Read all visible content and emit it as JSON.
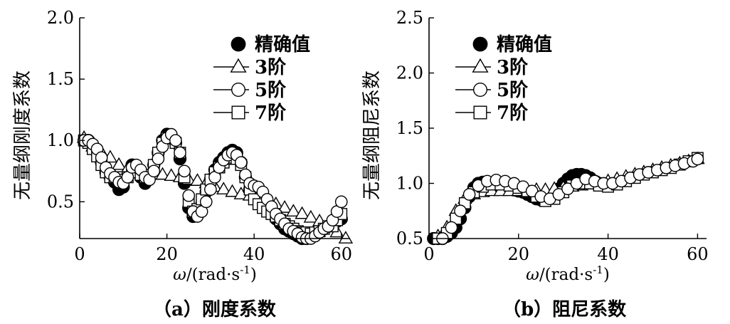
{
  "chart_data": [
    {
      "type": "scatter",
      "panel": "a",
      "caption": "（a）刚度系数",
      "xlabel_prefix": "ω/(rad·s",
      "xlabel_sup": "-1",
      "xlabel_suffix": ")",
      "ylabel": "无量纲刚度系数",
      "xlim": [
        0,
        62
      ],
      "ylim": [
        0.2,
        2.0
      ],
      "xticks": [
        0,
        20,
        40,
        60
      ],
      "yticks": [
        0.5,
        1.0,
        1.5,
        2.0
      ],
      "legend_position": "top-right",
      "series": [
        {
          "name": "精确值",
          "marker": "filled-circle",
          "x": [
            1,
            2,
            3,
            4,
            5,
            6,
            7,
            8,
            9,
            10,
            11,
            12,
            13,
            14,
            15,
            16,
            17,
            18,
            19,
            20,
            21,
            22,
            23,
            24,
            25,
            26,
            27,
            28,
            29,
            30,
            31,
            32,
            33,
            34,
            35,
            36,
            37,
            38,
            39,
            40,
            41,
            42,
            43,
            44,
            45,
            46,
            47,
            48,
            49,
            50,
            51,
            52,
            53,
            54,
            55,
            56,
            57,
            58,
            59,
            60
          ],
          "y": [
            1.0,
            1.0,
            0.95,
            0.9,
            0.82,
            0.74,
            0.7,
            0.66,
            0.6,
            0.62,
            0.72,
            0.8,
            0.78,
            0.7,
            0.65,
            0.7,
            0.8,
            0.9,
            1.0,
            1.05,
            1.02,
            0.98,
            0.85,
            0.65,
            0.45,
            0.38,
            0.4,
            0.48,
            0.58,
            0.68,
            0.76,
            0.82,
            0.86,
            0.9,
            0.92,
            0.9,
            0.82,
            0.7,
            0.6,
            0.55,
            0.52,
            0.5,
            0.45,
            0.4,
            0.36,
            0.32,
            0.28,
            0.26,
            0.24,
            0.22,
            0.2,
            0.2,
            0.22,
            0.24,
            0.26,
            0.28,
            0.3,
            0.32,
            0.34,
            0.36
          ]
        },
        {
          "name": "3阶",
          "marker": "open-triangle",
          "x": [
            1,
            3,
            5,
            7,
            9,
            11,
            13,
            15,
            17,
            19,
            21,
            23,
            25,
            27,
            29,
            31,
            33,
            35,
            37,
            39,
            41,
            43,
            45,
            47,
            49,
            51,
            53,
            55,
            57,
            59,
            61
          ],
          "y": [
            1.02,
            0.95,
            0.9,
            0.86,
            0.8,
            0.77,
            0.74,
            0.72,
            0.72,
            0.72,
            0.71,
            0.7,
            0.68,
            0.67,
            0.65,
            0.62,
            0.6,
            0.58,
            0.56,
            0.55,
            0.53,
            0.5,
            0.48,
            0.45,
            0.42,
            0.4,
            0.37,
            0.34,
            0.3,
            0.25,
            0.2
          ]
        },
        {
          "name": "5阶",
          "marker": "open-circle",
          "x": [
            1,
            2,
            3,
            4,
            5,
            6,
            7,
            8,
            9,
            10,
            11,
            12,
            13,
            14,
            15,
            16,
            17,
            18,
            19,
            20,
            21,
            22,
            23,
            24,
            25,
            26,
            27,
            28,
            29,
            30,
            31,
            32,
            33,
            34,
            35,
            36,
            37,
            38,
            39,
            40,
            41,
            42,
            43,
            44,
            45,
            46,
            47,
            48,
            49,
            50,
            51,
            52,
            53,
            54,
            55,
            56,
            57,
            58,
            59,
            60
          ],
          "y": [
            1.0,
            1.0,
            0.97,
            0.93,
            0.86,
            0.78,
            0.73,
            0.7,
            0.66,
            0.65,
            0.7,
            0.78,
            0.8,
            0.76,
            0.7,
            0.68,
            0.75,
            0.85,
            0.95,
            1.02,
            1.05,
            1.0,
            0.9,
            0.75,
            0.55,
            0.42,
            0.38,
            0.42,
            0.5,
            0.6,
            0.7,
            0.78,
            0.84,
            0.88,
            0.9,
            0.88,
            0.82,
            0.72,
            0.65,
            0.63,
            0.62,
            0.58,
            0.52,
            0.46,
            0.4,
            0.36,
            0.32,
            0.28,
            0.26,
            0.24,
            0.21,
            0.2,
            0.2,
            0.22,
            0.25,
            0.28,
            0.3,
            0.35,
            0.42,
            0.5
          ]
        },
        {
          "name": "7阶",
          "marker": "open-square",
          "x": [
            1,
            2,
            3,
            4,
            5,
            6,
            7,
            8,
            9,
            10,
            11,
            12,
            13,
            14,
            15,
            16,
            17,
            18,
            19,
            20,
            21,
            22,
            23,
            24,
            25,
            26,
            27,
            28,
            29,
            30,
            31,
            32,
            33,
            34,
            35,
            36,
            37,
            38,
            39,
            40,
            41,
            42,
            43,
            44,
            45,
            46,
            47,
            48,
            49,
            50,
            51,
            52,
            53,
            54,
            55,
            56,
            57,
            58,
            59,
            60
          ],
          "y": [
            1.0,
            0.98,
            0.93,
            0.87,
            0.8,
            0.74,
            0.7,
            0.7,
            0.7,
            0.68,
            0.7,
            0.74,
            0.74,
            0.72,
            0.7,
            0.72,
            0.8,
            0.9,
            0.98,
            1.02,
            1.02,
            0.98,
            0.9,
            0.7,
            0.5,
            0.42,
            0.44,
            0.52,
            0.6,
            0.68,
            0.74,
            0.78,
            0.82,
            0.85,
            0.86,
            0.85,
            0.8,
            0.7,
            0.6,
            0.52,
            0.48,
            0.45,
            0.42,
            0.4,
            0.38,
            0.35,
            0.32,
            0.3,
            0.28,
            0.26,
            0.25,
            0.25,
            0.24,
            0.25,
            0.26,
            0.28,
            0.3,
            0.3,
            0.35,
            0.4
          ]
        }
      ]
    },
    {
      "type": "scatter",
      "panel": "b",
      "caption": "（b）阻尼系数",
      "xlabel_prefix": "ω/(rad·s",
      "xlabel_sup": "-1",
      "xlabel_suffix": ")",
      "ylabel": "无量纲阻尼系数",
      "xlim": [
        0,
        62
      ],
      "ylim": [
        0.5,
        2.5
      ],
      "xticks": [
        0,
        20,
        40,
        60
      ],
      "yticks": [
        0.5,
        1.0,
        1.5,
        2.0,
        2.5
      ],
      "legend_position": "top-left",
      "series": [
        {
          "name": "精确值",
          "marker": "filled-circle",
          "x": [
            1,
            2,
            3,
            4,
            5,
            6,
            7,
            8,
            9,
            10,
            11,
            12,
            13,
            14,
            15,
            16,
            17,
            18,
            19,
            20,
            21,
            22,
            23,
            24,
            25,
            26,
            27,
            28,
            29,
            30,
            31,
            32,
            33,
            34,
            35,
            36,
            37,
            38
          ],
          "y": [
            0.5,
            0.5,
            0.5,
            0.52,
            0.55,
            0.6,
            0.68,
            0.78,
            0.88,
            0.96,
            1.0,
            1.01,
            1.0,
            0.99,
            0.98,
            0.97,
            0.96,
            0.95,
            0.94,
            0.93,
            0.92,
            0.9,
            0.88,
            0.86,
            0.85,
            0.85,
            0.87,
            0.9,
            0.95,
            1.0,
            1.04,
            1.07,
            1.08,
            1.08,
            1.07,
            1.05,
            1.02,
            1.0
          ]
        },
        {
          "name": "3阶",
          "marker": "open-triangle",
          "x": [
            2,
            4,
            6,
            8,
            10,
            12,
            14,
            16,
            18,
            20,
            22,
            24,
            26,
            28,
            30,
            32,
            34,
            36,
            38,
            40,
            42,
            44,
            46,
            48,
            50,
            52,
            54,
            56,
            58,
            60
          ],
          "y": [
            0.52,
            0.6,
            0.75,
            0.86,
            0.9,
            0.92,
            0.93,
            0.93,
            0.93,
            0.93,
            0.93,
            0.94,
            0.94,
            0.95,
            0.96,
            0.97,
            0.98,
            0.99,
            1.0,
            1.02,
            1.04,
            1.06,
            1.08,
            1.1,
            1.12,
            1.14,
            1.16,
            1.18,
            1.2,
            1.22
          ]
        },
        {
          "name": "5阶",
          "marker": "open-circle",
          "x": [
            3,
            5,
            7,
            9,
            11,
            13,
            15,
            17,
            19,
            21,
            23,
            25,
            27,
            29,
            31,
            33,
            35,
            37,
            39,
            41,
            43,
            45,
            47,
            49,
            51,
            53,
            55,
            57,
            59,
            60
          ],
          "y": [
            0.5,
            0.6,
            0.75,
            0.9,
            0.98,
            1.02,
            1.03,
            1.02,
            1.0,
            0.97,
            0.93,
            0.88,
            0.86,
            0.9,
            0.95,
            1.0,
            1.04,
            1.02,
            1.0,
            1.0,
            1.02,
            1.05,
            1.08,
            1.1,
            1.12,
            1.14,
            1.16,
            1.18,
            1.2,
            1.22
          ]
        },
        {
          "name": "7阶",
          "marker": "open-square",
          "x": [
            2,
            4,
            6,
            8,
            10,
            12,
            14,
            16,
            18,
            20,
            22,
            24,
            26,
            28,
            30,
            32,
            34,
            36,
            38,
            40,
            42,
            44,
            46,
            48,
            50,
            52,
            54,
            56,
            58,
            60
          ],
          "y": [
            0.5,
            0.55,
            0.68,
            0.82,
            0.92,
            0.97,
            0.99,
            0.99,
            0.98,
            0.96,
            0.93,
            0.88,
            0.84,
            0.86,
            0.92,
            0.98,
            1.0,
            1.0,
            0.98,
            0.97,
            0.99,
            1.02,
            1.05,
            1.08,
            1.1,
            1.12,
            1.14,
            1.17,
            1.2,
            1.23
          ]
        }
      ]
    }
  ]
}
